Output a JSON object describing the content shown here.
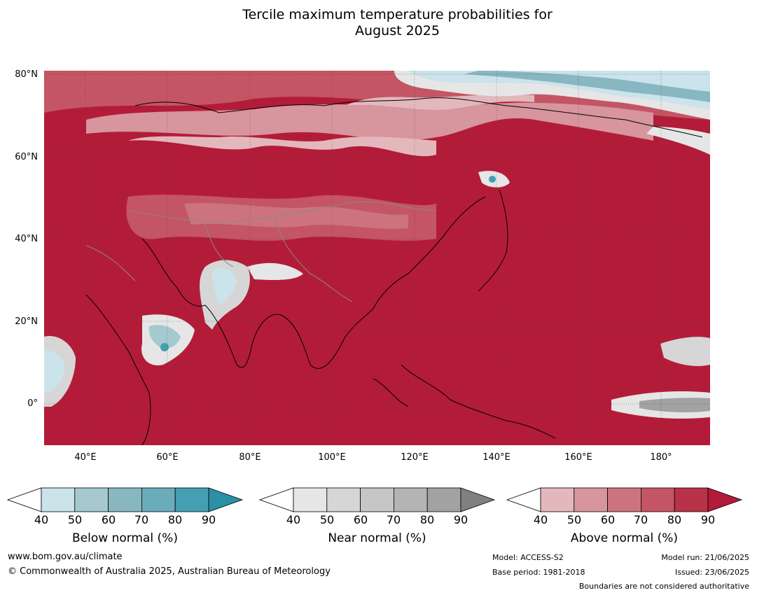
{
  "title_line1": "Tercile maximum temperature probabilities for",
  "title_line2": "August 2025",
  "map": {
    "lat_labels": [
      "80°N",
      "60°N",
      "40°N",
      "20°N",
      "0°"
    ],
    "lon_labels": [
      "40°E",
      "60°E",
      "80°E",
      "100°E",
      "120°E",
      "140°E",
      "160°E",
      "180°"
    ],
    "lon_range": [
      30,
      192
    ],
    "lat_range": [
      -10,
      81
    ]
  },
  "colorbars": [
    {
      "label": "Below normal (%)",
      "ticks": [
        "40",
        "50",
        "60",
        "70",
        "80",
        "90"
      ],
      "colors": [
        "#ffffff",
        "#cbe3ea",
        "#a6c9d0",
        "#88b7c2",
        "#6aacba",
        "#449fb2",
        "#2b8fa5"
      ]
    },
    {
      "label": "Near normal (%)",
      "ticks": [
        "40",
        "50",
        "60",
        "70",
        "80",
        "90"
      ],
      "colors": [
        "#ffffff",
        "#e6e6e6",
        "#d6d6d6",
        "#c6c6c6",
        "#b4b4b4",
        "#a2a2a2",
        "#808080"
      ]
    },
    {
      "label": "Above normal (%)",
      "ticks": [
        "40",
        "50",
        "60",
        "70",
        "80",
        "90"
      ],
      "colors": [
        "#ffffff",
        "#e3b8bd",
        "#d7959d",
        "#cc737f",
        "#c45564",
        "#b83347",
        "#b21c38"
      ]
    }
  ],
  "footer": {
    "website": "www.bom.gov.au/climate",
    "copyright": "© Commonwealth of Australia 2025, Australian Bureau of Meteorology",
    "model": "Model: ACCESS-S2",
    "base_period": "Base period: 1981-2018",
    "model_run": "Model run: 21/06/2025",
    "issued": "Issued: 23/06/2025",
    "disclaimer": "Boundaries are not considered authoritative"
  }
}
